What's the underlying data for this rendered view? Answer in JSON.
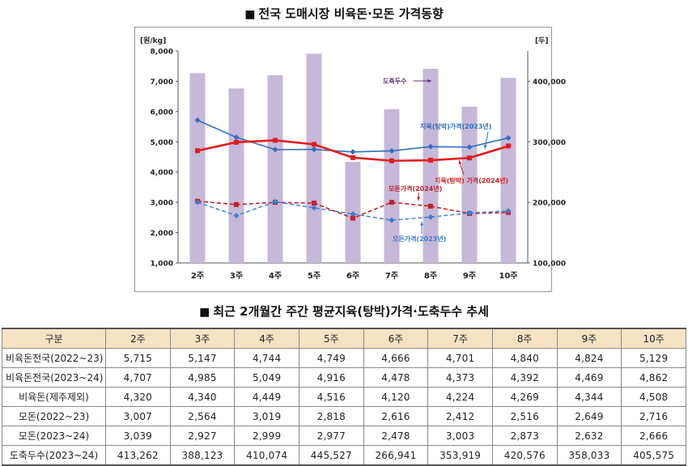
{
  "title_top": "전국 도매시장 비육돈·모돈 가격동향",
  "title_bottom": "최근 2개월간 주간 평균지육(탕박)가격·도축두수 추세",
  "chart_data": {
    "type": "bar+line",
    "categories": [
      "2주",
      "3주",
      "4주",
      "5주",
      "6주",
      "7주",
      "8주",
      "9주",
      "10주"
    ],
    "ylabel_left": "[원/kg]",
    "ylabel_right": "[두]",
    "ylim_left": [
      1000,
      8000
    ],
    "yticks_left": [
      "1,000",
      "2,000",
      "3,000",
      "4,000",
      "5,000",
      "6,000",
      "7,000",
      "8,000"
    ],
    "ylim_right": [
      100000,
      450000
    ],
    "yticks_right": [
      "100,000",
      "200,000",
      "300,000",
      "400,000"
    ],
    "bars": {
      "name": "도축두수",
      "axis": "right",
      "color": "#c6b8d8",
      "values": [
        413262,
        388123,
        410074,
        445527,
        266941,
        353919,
        420576,
        358033,
        405575
      ]
    },
    "lines": [
      {
        "name": "지육(탕박)가격(2023년)",
        "color": "#2f6fc0",
        "dashed": false,
        "marker": "diamond",
        "width": 1.6,
        "values": [
          5715,
          5147,
          4744,
          4749,
          4666,
          4701,
          4840,
          4824,
          5129
        ]
      },
      {
        "name": "지육(탕박) 가격(2024년)",
        "color": "#e01e1e",
        "dashed": false,
        "marker": "square",
        "width": 2.6,
        "values": [
          4707,
          4985,
          5049,
          4916,
          4478,
          4373,
          4392,
          4469,
          4862
        ]
      },
      {
        "name": "모돈가격(2024년)",
        "color": "#c0222a",
        "dashed": true,
        "marker": "square",
        "width": 1.6,
        "values": [
          3039,
          2927,
          2999,
          2977,
          2478,
          3003,
          2873,
          2632,
          2666
        ]
      },
      {
        "name": "모돈가격(2023년)",
        "color": "#3a7fd0",
        "dashed": true,
        "marker": "diamond",
        "width": 1.4,
        "values": [
          3007,
          2564,
          3019,
          2818,
          2616,
          2412,
          2516,
          2649,
          2716
        ]
      }
    ],
    "annotations": [
      {
        "text": "도축두수",
        "color": "#5a2d82"
      },
      {
        "text": "지육(탕박)가격(2023년)",
        "color": "#2f6fc0"
      },
      {
        "text": "지육(탕박) 가격(2024년)",
        "color": "#e01e1e"
      },
      {
        "text": "모돈가격(2024년)",
        "color": "#c0222a"
      },
      {
        "text": "모돈가격(2023년)",
        "color": "#3a7fd0"
      }
    ]
  },
  "table": {
    "headers": [
      "구분",
      "2주",
      "3주",
      "4주",
      "5주",
      "6주",
      "7주",
      "8주",
      "9주",
      "10주"
    ],
    "rows": [
      [
        "비육돈전국(2022~23)",
        "5,715",
        "5,147",
        "4,744",
        "4,749",
        "4,666",
        "4,701",
        "4,840",
        "4,824",
        "5,129"
      ],
      [
        "비육돈전국(2023~24)",
        "4,707",
        "4,985",
        "5,049",
        "4,916",
        "4,478",
        "4,373",
        "4,392",
        "4,469",
        "4,862"
      ],
      [
        "비육돈(제주제외)",
        "4,320",
        "4,340",
        "4,449",
        "4,516",
        "4,120",
        "4,224",
        "4,269",
        "4,344",
        "4,508"
      ],
      [
        "모돈(2022~23)",
        "3,007",
        "2,564",
        "3,019",
        "2,818",
        "2,616",
        "2,412",
        "2,516",
        "2,649",
        "2,716"
      ],
      [
        "모돈(2023~24)",
        "3,039",
        "2,927",
        "2,999",
        "2,977",
        "2,478",
        "3,003",
        "2,873",
        "2,632",
        "2,666"
      ],
      [
        "도축두수(2023~24)",
        "413,262",
        "388,123",
        "410,074",
        "445,527",
        "266,941",
        "353,919",
        "420,576",
        "358,033",
        "405,575"
      ]
    ]
  }
}
